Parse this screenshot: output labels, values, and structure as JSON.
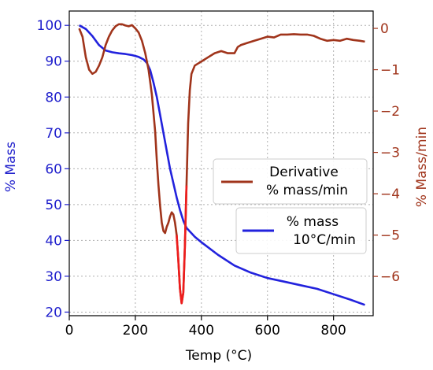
{
  "chart_data": {
    "type": "line",
    "xlabel": "Temp (°C)",
    "ylabel_left": "% Mass",
    "ylabel_right": "% Mass/min",
    "xlim": [
      0,
      920
    ],
    "ylim_left": [
      19,
      104
    ],
    "ylim_right": [
      -6.95,
      0.42
    ],
    "x_ticks": [
      0,
      200,
      400,
      600,
      800
    ],
    "y_left_ticks": [
      20,
      30,
      40,
      50,
      60,
      70,
      80,
      90,
      100
    ],
    "y_right_ticks": [
      0,
      -1,
      -2,
      -3,
      -4,
      -5,
      -6
    ],
    "grid": true,
    "colors": {
      "mass": "#2222dd",
      "derivative": "#a0341b",
      "derivative_dip": "#ee1c1c",
      "left_axis": "#1f1fcc",
      "right_axis": "#a0341b"
    },
    "series": [
      {
        "name": "% mass\n10°C/min",
        "axis": "left",
        "x": [
          30,
          50,
          70,
          90,
          110,
          130,
          150,
          170,
          190,
          210,
          225,
          235,
          245,
          255,
          265,
          275,
          285,
          295,
          305,
          315,
          325,
          335,
          345,
          355,
          365,
          380,
          400,
          450,
          500,
          550,
          600,
          650,
          700,
          750,
          800,
          850,
          895
        ],
        "values": [
          100,
          99,
          97,
          94.5,
          93,
          92.5,
          92.2,
          92,
          91.7,
          91.2,
          90.5,
          89.5,
          87.5,
          84,
          80,
          75,
          70,
          65,
          60,
          56,
          52,
          48.5,
          45.5,
          43.5,
          42.5,
          41,
          39.5,
          36,
          33,
          31,
          29.5,
          28.5,
          27.5,
          26.5,
          25,
          23.5,
          22
        ]
      },
      {
        "name": "Derivative\n% mass/min",
        "axis": "right",
        "x": [
          30,
          40,
          50,
          60,
          70,
          80,
          90,
          100,
          110,
          120,
          130,
          140,
          150,
          160,
          170,
          180,
          190,
          200,
          210,
          220,
          230,
          240,
          250,
          260,
          265,
          270,
          275,
          280,
          285,
          290,
          295,
          300,
          305,
          310,
          315,
          320,
          325,
          330,
          335,
          340,
          345,
          350,
          355,
          360,
          365,
          370,
          380,
          390,
          400,
          420,
          440,
          460,
          480,
          500,
          510,
          520,
          540,
          560,
          580,
          600,
          620,
          640,
          660,
          680,
          700,
          720,
          740,
          760,
          780,
          800,
          820,
          840,
          860,
          880,
          895
        ],
        "values": [
          0,
          -0.2,
          -0.7,
          -1.0,
          -1.1,
          -1.05,
          -0.9,
          -0.7,
          -0.4,
          -0.2,
          -0.05,
          0.05,
          0.1,
          0.1,
          0.07,
          0.05,
          0.08,
          0.0,
          -0.1,
          -0.3,
          -0.6,
          -1.0,
          -1.6,
          -2.5,
          -3.2,
          -3.8,
          -4.3,
          -4.7,
          -4.9,
          -4.95,
          -4.8,
          -4.7,
          -4.55,
          -4.45,
          -4.5,
          -4.7,
          -5.0,
          -5.6,
          -6.3,
          -6.65,
          -6.4,
          -5.3,
          -3.8,
          -2.3,
          -1.5,
          -1.1,
          -0.9,
          -0.85,
          -0.8,
          -0.7,
          -0.6,
          -0.55,
          -0.6,
          -0.6,
          -0.45,
          -0.4,
          -0.35,
          -0.3,
          -0.25,
          -0.2,
          -0.22,
          -0.15,
          -0.15,
          -0.14,
          -0.15,
          -0.15,
          -0.18,
          -0.25,
          -0.3,
          -0.28,
          -0.3,
          -0.25,
          -0.28,
          -0.3,
          -0.32
        ]
      }
    ]
  }
}
